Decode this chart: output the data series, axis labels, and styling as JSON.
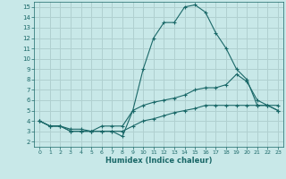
{
  "xlabel": "Humidex (Indice chaleur)",
  "bg_color": "#c8e8e8",
  "grid_color": "#b0d0d0",
  "line_color": "#1a6868",
  "x_ticks": [
    0,
    1,
    2,
    3,
    4,
    5,
    6,
    7,
    8,
    9,
    10,
    11,
    12,
    13,
    14,
    15,
    16,
    17,
    18,
    19,
    20,
    21,
    22,
    23
  ],
  "y_ticks": [
    2,
    3,
    4,
    5,
    6,
    7,
    8,
    9,
    10,
    11,
    12,
    13,
    14,
    15
  ],
  "xlim": [
    -0.5,
    23.5
  ],
  "ylim": [
    1.5,
    15.5
  ],
  "line1_x": [
    0,
    1,
    2,
    3,
    4,
    5,
    6,
    7,
    8,
    9,
    10,
    11,
    12,
    13,
    14,
    15,
    16,
    17,
    18,
    19,
    20,
    21,
    22,
    23
  ],
  "line1_y": [
    4.0,
    3.5,
    3.5,
    3.0,
    3.0,
    3.0,
    3.0,
    3.0,
    2.5,
    5.0,
    9.0,
    12.0,
    13.5,
    13.5,
    15.0,
    15.2,
    14.5,
    12.5,
    11.0,
    9.0,
    8.0,
    5.5,
    5.5,
    5.0
  ],
  "line2_x": [
    0,
    1,
    2,
    3,
    4,
    5,
    6,
    7,
    8,
    9,
    10,
    11,
    12,
    13,
    14,
    15,
    16,
    17,
    18,
    19,
    20,
    21,
    22,
    23
  ],
  "line2_y": [
    4.0,
    3.5,
    3.5,
    3.2,
    3.2,
    3.0,
    3.5,
    3.5,
    3.5,
    5.0,
    5.5,
    5.8,
    6.0,
    6.2,
    6.5,
    7.0,
    7.2,
    7.2,
    7.5,
    8.5,
    7.8,
    6.0,
    5.5,
    5.0
  ],
  "line3_x": [
    0,
    1,
    2,
    3,
    4,
    5,
    6,
    7,
    8,
    9,
    10,
    11,
    12,
    13,
    14,
    15,
    16,
    17,
    18,
    19,
    20,
    21,
    22,
    23
  ],
  "line3_y": [
    4.0,
    3.5,
    3.5,
    3.0,
    3.0,
    3.0,
    3.0,
    3.0,
    3.0,
    3.5,
    4.0,
    4.2,
    4.5,
    4.8,
    5.0,
    5.2,
    5.5,
    5.5,
    5.5,
    5.5,
    5.5,
    5.5,
    5.5,
    5.5
  ]
}
